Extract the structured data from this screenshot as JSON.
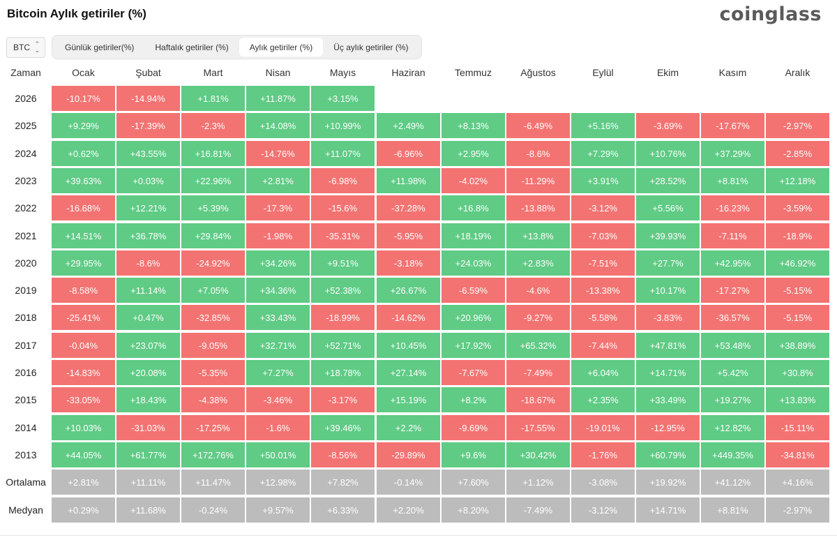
{
  "title": "Bitcoin Aylık getiriler (%)",
  "brand": "coinglass",
  "asset_selector": {
    "value": "BTC",
    "icon": "up-down-chevron-icon"
  },
  "tabs": [
    {
      "label": "Günlük getiriler(%)",
      "active": false
    },
    {
      "label": "Haftalık getiriler (%)",
      "active": false
    },
    {
      "label": "Aylık getiriler (%)",
      "active": true
    },
    {
      "label": "Üç aylık getiriler (%)",
      "active": false
    }
  ],
  "colors": {
    "positive": "#5fcb85",
    "negative": "#f37372",
    "summary": "#bcbcbc"
  },
  "table": {
    "corner_label": "Zaman",
    "months": [
      "Ocak",
      "Şubat",
      "Mart",
      "Nisan",
      "Mayıs",
      "Haziran",
      "Temmuz",
      "Ağustos",
      "Eylül",
      "Ekim",
      "Kasım",
      "Aralık"
    ],
    "rows": [
      {
        "year": "2026",
        "values": [
          "-10.17%",
          "-14.94%",
          "+1.81%",
          "+11.87%",
          "+3.15%",
          "",
          "",
          "",
          "",
          "",
          "",
          ""
        ]
      },
      {
        "year": "2025",
        "values": [
          "+9.29%",
          "-17.39%",
          "-2.3%",
          "+14.08%",
          "+10.99%",
          "+2.49%",
          "+8.13%",
          "-6.49%",
          "+5.16%",
          "-3.69%",
          "-17.67%",
          "-2.97%"
        ]
      },
      {
        "year": "2024",
        "values": [
          "+0.62%",
          "+43.55%",
          "+16.81%",
          "-14.76%",
          "+11.07%",
          "-6.96%",
          "+2.95%",
          "-8.6%",
          "+7.29%",
          "+10.76%",
          "+37.29%",
          "-2.85%"
        ]
      },
      {
        "year": "2023",
        "values": [
          "+39.63%",
          "+0.03%",
          "+22.96%",
          "+2.81%",
          "-6.98%",
          "+11.98%",
          "-4.02%",
          "-11.29%",
          "+3.91%",
          "+28.52%",
          "+8.81%",
          "+12.18%"
        ]
      },
      {
        "year": "2022",
        "values": [
          "-16.68%",
          "+12.21%",
          "+5.39%",
          "-17.3%",
          "-15.6%",
          "-37.28%",
          "+16.8%",
          "-13.88%",
          "-3.12%",
          "+5.56%",
          "-16.23%",
          "-3.59%"
        ]
      },
      {
        "year": "2021",
        "values": [
          "+14.51%",
          "+36.78%",
          "+29.84%",
          "-1.98%",
          "-35.31%",
          "-5.95%",
          "+18.19%",
          "+13.8%",
          "-7.03%",
          "+39.93%",
          "-7.11%",
          "-18.9%"
        ]
      },
      {
        "year": "2020",
        "values": [
          "+29.95%",
          "-8.6%",
          "-24.92%",
          "+34.26%",
          "+9.51%",
          "-3.18%",
          "+24.03%",
          "+2.83%",
          "-7.51%",
          "+27.7%",
          "+42.95%",
          "+46.92%"
        ]
      },
      {
        "year": "2019",
        "values": [
          "-8.58%",
          "+11.14%",
          "+7.05%",
          "+34.36%",
          "+52.38%",
          "+26.67%",
          "-6.59%",
          "-4.6%",
          "-13.38%",
          "+10.17%",
          "-17.27%",
          "-5.15%"
        ]
      },
      {
        "year": "2018",
        "values": [
          "-25.41%",
          "+0.47%",
          "-32.85%",
          "+33.43%",
          "-18.99%",
          "-14.62%",
          "+20.96%",
          "-9.27%",
          "-5.58%",
          "-3.83%",
          "-36.57%",
          "-5.15%"
        ]
      },
      {
        "year": "2017",
        "values": [
          "-0.04%",
          "+23.07%",
          "-9.05%",
          "+32.71%",
          "+52.71%",
          "+10.45%",
          "+17.92%",
          "+65.32%",
          "-7.44%",
          "+47.81%",
          "+53.48%",
          "+38.89%"
        ]
      },
      {
        "year": "2016",
        "values": [
          "-14.83%",
          "+20.08%",
          "-5.35%",
          "+7.27%",
          "+18.78%",
          "+27.14%",
          "-7.67%",
          "-7.49%",
          "+6.04%",
          "+14.71%",
          "+5.42%",
          "+30.8%"
        ]
      },
      {
        "year": "2015",
        "values": [
          "-33.05%",
          "+18.43%",
          "-4.38%",
          "-3.46%",
          "-3.17%",
          "+15.19%",
          "+8.2%",
          "-18.67%",
          "+2.35%",
          "+33.49%",
          "+19.27%",
          "+13.83%"
        ]
      },
      {
        "year": "2014",
        "values": [
          "+10.03%",
          "-31.03%",
          "-17.25%",
          "-1.6%",
          "+39.46%",
          "+2.2%",
          "-9.69%",
          "-17.55%",
          "-19.01%",
          "-12.95%",
          "+12.82%",
          "-15.11%"
        ]
      },
      {
        "year": "2013",
        "values": [
          "+44.05%",
          "+61.77%",
          "+172.76%",
          "+50.01%",
          "-8.56%",
          "-29.89%",
          "+9.6%",
          "+30.42%",
          "-1.76%",
          "+60.79%",
          "+449.35%",
          "-34.81%"
        ]
      }
    ],
    "summary": [
      {
        "label": "Ortalama",
        "values": [
          "+2.81%",
          "+11.11%",
          "+11.47%",
          "+12.98%",
          "+7.82%",
          "-0.14%",
          "+7.60%",
          "+1.12%",
          "-3.08%",
          "+19.92%",
          "+41.12%",
          "+4.16%"
        ]
      },
      {
        "label": "Medyan",
        "values": [
          "+0.29%",
          "+11.68%",
          "-0.24%",
          "+9.57%",
          "+6.33%",
          "+2.20%",
          "+8.20%",
          "-7.49%",
          "-3.12%",
          "+14.71%",
          "+8.81%",
          "-2.97%"
        ]
      }
    ]
  }
}
